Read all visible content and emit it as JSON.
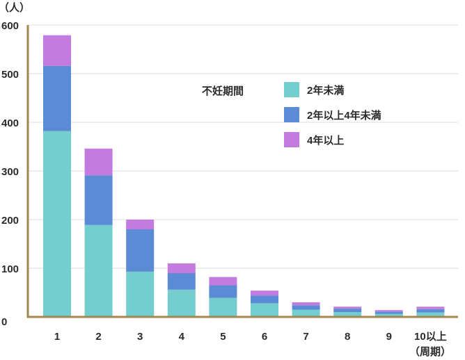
{
  "chart_data": {
    "type": "bar",
    "stacked": true,
    "y_unit": "（人）",
    "categories": [
      "1",
      "2",
      "3",
      "4",
      "5",
      "6",
      "7",
      "8",
      "9",
      "10以上"
    ],
    "x_unit_note": "（周期）",
    "series": [
      {
        "name": "2年未満",
        "color": "#74cdcf",
        "values": [
          382,
          189,
          93,
          56,
          39,
          28,
          15,
          10,
          6,
          9
        ]
      },
      {
        "name": "2年以上4年未満",
        "color": "#5b8bd4",
        "values": [
          134,
          102,
          87,
          34,
          26,
          16,
          9,
          7,
          5,
          7
        ]
      },
      {
        "name": "4年以上",
        "color": "#c47be0",
        "values": [
          63,
          55,
          20,
          20,
          17,
          10,
          6,
          4,
          3,
          5
        ]
      }
    ],
    "ylim": [
      0,
      600
    ],
    "yticks": [
      0,
      100,
      200,
      300,
      400,
      500,
      600
    ],
    "legend_title": "不妊期間",
    "legend_position": "top-right",
    "grid": true,
    "axis_color": "#a3864f",
    "grid_color": "#dcdcdc"
  }
}
